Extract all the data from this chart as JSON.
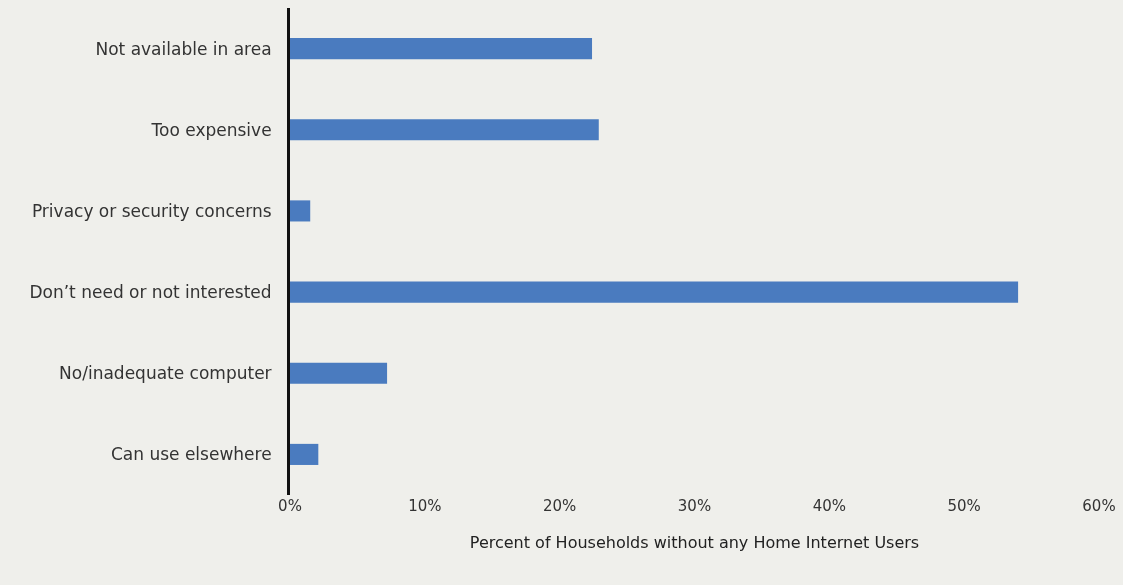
{
  "chart_data": {
    "type": "bar",
    "orientation": "horizontal",
    "xlabel": "Percent of Households without any Home Internet Users",
    "categories": [
      "Not available in area",
      "Too expensive",
      "Privacy or security concerns",
      "Don’t need or not interested",
      "No/inadequate computer",
      "Can use elsewhere"
    ],
    "values": [
      22.4,
      22.9,
      1.5,
      54.0,
      7.2,
      2.1
    ],
    "color": "#4a7bbf",
    "xlim": [
      0,
      60
    ],
    "xticks": [
      {
        "value": 0,
        "label": "0%"
      },
      {
        "value": 10,
        "label": "10%"
      },
      {
        "value": 20,
        "label": "20%"
      },
      {
        "value": 30,
        "label": "30%"
      },
      {
        "value": 40,
        "label": "40%"
      },
      {
        "value": 50,
        "label": "50%"
      },
      {
        "value": 60,
        "label": "60%"
      }
    ],
    "grid": false
  }
}
